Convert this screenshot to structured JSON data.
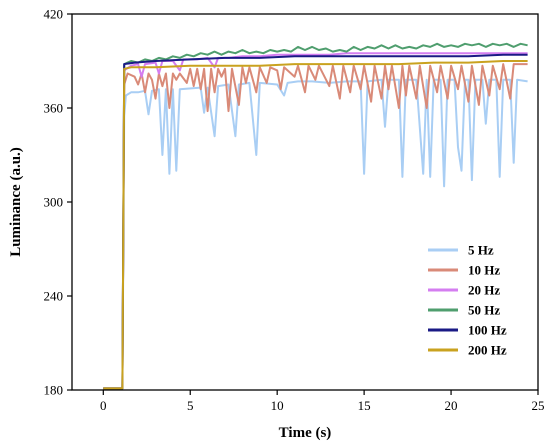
{
  "chart_data": {
    "type": "line",
    "title": "",
    "xlabel": "Time (s)",
    "ylabel": "Luminance (a.u.)",
    "xlim": [
      -1.8,
      25
    ],
    "ylim": [
      180,
      420
    ],
    "x_ticks": [
      0,
      5,
      10,
      15,
      20,
      25
    ],
    "y_ticks": [
      180,
      240,
      300,
      360,
      420
    ],
    "x_tick_labels": [
      "0",
      "5",
      "10",
      "15",
      "20",
      "25"
    ],
    "y_tick_labels": [
      "180",
      "240",
      "300",
      "360",
      "420"
    ],
    "grid": false,
    "legend_position": "bottom-right",
    "series": [
      {
        "name": "5 Hz",
        "color": "#a9cef4",
        "points": [
          [
            0,
            181
          ],
          [
            1.1,
            181
          ],
          [
            1.2,
            355
          ],
          [
            1.3,
            368
          ],
          [
            1.6,
            370
          ],
          [
            2,
            370
          ],
          [
            2.4,
            371
          ],
          [
            2.6,
            356
          ],
          [
            2.8,
            371
          ],
          [
            3.2,
            372
          ],
          [
            3.4,
            330
          ],
          [
            3.6,
            372
          ],
          [
            3.8,
            318
          ],
          [
            4,
            372
          ],
          [
            4.2,
            320
          ],
          [
            4.4,
            372
          ],
          [
            5.6,
            373
          ],
          [
            5.8,
            357
          ],
          [
            6,
            373
          ],
          [
            6.4,
            342
          ],
          [
            6.6,
            374
          ],
          [
            7.2,
            375
          ],
          [
            7.6,
            342
          ],
          [
            7.8,
            375
          ],
          [
            8.4,
            376
          ],
          [
            8.8,
            330
          ],
          [
            9,
            376
          ],
          [
            10,
            375
          ],
          [
            10.4,
            368
          ],
          [
            10.6,
            376
          ],
          [
            11.2,
            377
          ],
          [
            12,
            377
          ],
          [
            13,
            376
          ],
          [
            14,
            377
          ],
          [
            14.8,
            377
          ],
          [
            15,
            318
          ],
          [
            15.2,
            377
          ],
          [
            16,
            378
          ],
          [
            16.2,
            348
          ],
          [
            16.4,
            378
          ],
          [
            17,
            378
          ],
          [
            17.2,
            316
          ],
          [
            17.4,
            378
          ],
          [
            18,
            378
          ],
          [
            18.4,
            318
          ],
          [
            18.6,
            378
          ],
          [
            18.8,
            316
          ],
          [
            19,
            378
          ],
          [
            19.4,
            378
          ],
          [
            19.6,
            310
          ],
          [
            19.8,
            378
          ],
          [
            20.2,
            378
          ],
          [
            20.4,
            335
          ],
          [
            20.6,
            320
          ],
          [
            20.8,
            378
          ],
          [
            21,
            378
          ],
          [
            21.2,
            314
          ],
          [
            21.4,
            378
          ],
          [
            21.8,
            378
          ],
          [
            22,
            350
          ],
          [
            22.2,
            378
          ],
          [
            22.6,
            378
          ],
          [
            22.8,
            316
          ],
          [
            23,
            378
          ],
          [
            23.4,
            378
          ],
          [
            23.6,
            325
          ],
          [
            23.8,
            378
          ],
          [
            24.4,
            377
          ]
        ]
      },
      {
        "name": "10 Hz",
        "color": "#d98a78",
        "points": [
          [
            0,
            181
          ],
          [
            1.1,
            181
          ],
          [
            1.2,
            375
          ],
          [
            1.4,
            382
          ],
          [
            1.8,
            380
          ],
          [
            2,
            375
          ],
          [
            2.2,
            382
          ],
          [
            2.4,
            370
          ],
          [
            2.6,
            382
          ],
          [
            2.8,
            378
          ],
          [
            3,
            366
          ],
          [
            3.2,
            382
          ],
          [
            3.4,
            374
          ],
          [
            3.6,
            382
          ],
          [
            3.8,
            360
          ],
          [
            4,
            382
          ],
          [
            4.2,
            378
          ],
          [
            4.4,
            382
          ],
          [
            4.8,
            376
          ],
          [
            5,
            385
          ],
          [
            5.2,
            374
          ],
          [
            5.4,
            385
          ],
          [
            5.6,
            372
          ],
          [
            5.8,
            385
          ],
          [
            6,
            358
          ],
          [
            6.2,
            385
          ],
          [
            6.4,
            370
          ],
          [
            6.6,
            385
          ],
          [
            6.8,
            380
          ],
          [
            7,
            385
          ],
          [
            7.2,
            358
          ],
          [
            7.4,
            385
          ],
          [
            7.8,
            362
          ],
          [
            8,
            386
          ],
          [
            8.2,
            376
          ],
          [
            8.4,
            386
          ],
          [
            8.8,
            370
          ],
          [
            9,
            386
          ],
          [
            9.4,
            376
          ],
          [
            9.6,
            386
          ],
          [
            10,
            384
          ],
          [
            10.2,
            372
          ],
          [
            10.4,
            386
          ],
          [
            11,
            380
          ],
          [
            11.2,
            387
          ],
          [
            11.6,
            370
          ],
          [
            11.8,
            387
          ],
          [
            12.2,
            378
          ],
          [
            12.4,
            387
          ],
          [
            13,
            374
          ],
          [
            13.2,
            387
          ],
          [
            13.6,
            366
          ],
          [
            13.8,
            387
          ],
          [
            14.2,
            370
          ],
          [
            14.4,
            387
          ],
          [
            14.8,
            372
          ],
          [
            15,
            387
          ],
          [
            15.4,
            364
          ],
          [
            15.6,
            387
          ],
          [
            16,
            366
          ],
          [
            16.2,
            387
          ],
          [
            16.4,
            372
          ],
          [
            16.6,
            387
          ],
          [
            17,
            360
          ],
          [
            17.2,
            387
          ],
          [
            17.4,
            368
          ],
          [
            17.6,
            387
          ],
          [
            18,
            366
          ],
          [
            18.2,
            387
          ],
          [
            18.6,
            360
          ],
          [
            18.8,
            387
          ],
          [
            19.2,
            370
          ],
          [
            19.4,
            387
          ],
          [
            19.8,
            366
          ],
          [
            20,
            387
          ],
          [
            20.4,
            372
          ],
          [
            20.6,
            387
          ],
          [
            21,
            364
          ],
          [
            21.2,
            387
          ],
          [
            21.6,
            362
          ],
          [
            21.8,
            387
          ],
          [
            22.2,
            368
          ],
          [
            22.4,
            387
          ],
          [
            22.8,
            372
          ],
          [
            23,
            388
          ],
          [
            23.4,
            366
          ],
          [
            23.6,
            388
          ],
          [
            24,
            388
          ],
          [
            24.4,
            388
          ]
        ]
      },
      {
        "name": "20 Hz",
        "color": "#d47ef0",
        "points": [
          [
            0,
            181
          ],
          [
            1.1,
            181
          ],
          [
            1.2,
            384
          ],
          [
            1.6,
            387
          ],
          [
            2,
            388
          ],
          [
            2.2,
            380
          ],
          [
            2.4,
            388
          ],
          [
            3,
            389
          ],
          [
            3.2,
            382
          ],
          [
            3.4,
            390
          ],
          [
            4,
            390
          ],
          [
            4.4,
            384
          ],
          [
            4.6,
            391
          ],
          [
            5.4,
            391
          ],
          [
            6,
            392
          ],
          [
            6.4,
            386
          ],
          [
            6.6,
            392
          ],
          [
            7.2,
            392
          ],
          [
            8,
            393
          ],
          [
            8.6,
            393
          ],
          [
            9,
            393
          ],
          [
            10,
            394
          ],
          [
            11,
            394
          ],
          [
            12,
            394
          ],
          [
            13,
            394
          ],
          [
            14,
            395
          ],
          [
            15,
            395
          ],
          [
            16,
            395
          ],
          [
            17,
            395
          ],
          [
            18,
            395
          ],
          [
            19,
            395
          ],
          [
            20,
            395
          ],
          [
            21,
            395
          ],
          [
            22,
            395
          ],
          [
            23,
            395
          ],
          [
            24.4,
            395
          ]
        ]
      },
      {
        "name": "50 Hz",
        "color": "#4f9e6e",
        "points": [
          [
            0,
            181
          ],
          [
            1.1,
            181
          ],
          [
            1.2,
            388
          ],
          [
            1.6,
            390
          ],
          [
            2,
            389
          ],
          [
            2.4,
            391
          ],
          [
            2.8,
            390
          ],
          [
            3.2,
            392
          ],
          [
            3.6,
            391
          ],
          [
            4,
            393
          ],
          [
            4.4,
            392
          ],
          [
            4.8,
            394
          ],
          [
            5.2,
            393
          ],
          [
            5.6,
            395
          ],
          [
            6,
            394
          ],
          [
            6.4,
            396
          ],
          [
            6.8,
            394
          ],
          [
            7.2,
            396
          ],
          [
            7.6,
            395
          ],
          [
            8,
            397
          ],
          [
            8.4,
            395
          ],
          [
            8.8,
            396
          ],
          [
            9.2,
            395
          ],
          [
            9.6,
            397
          ],
          [
            10,
            396
          ],
          [
            10.4,
            397
          ],
          [
            10.8,
            396
          ],
          [
            11.2,
            399
          ],
          [
            11.6,
            397
          ],
          [
            12,
            399
          ],
          [
            12.4,
            397
          ],
          [
            12.8,
            398
          ],
          [
            13.2,
            396
          ],
          [
            13.6,
            397
          ],
          [
            14,
            396
          ],
          [
            14.4,
            399
          ],
          [
            14.8,
            397
          ],
          [
            15.2,
            399
          ],
          [
            15.6,
            398
          ],
          [
            16,
            400
          ],
          [
            16.4,
            398
          ],
          [
            16.8,
            400
          ],
          [
            17.2,
            398
          ],
          [
            17.6,
            399
          ],
          [
            18,
            398
          ],
          [
            18.4,
            400
          ],
          [
            18.8,
            399
          ],
          [
            19.2,
            401
          ],
          [
            19.6,
            399
          ],
          [
            20,
            400
          ],
          [
            20.4,
            399
          ],
          [
            20.8,
            401
          ],
          [
            21.2,
            400
          ],
          [
            21.6,
            401
          ],
          [
            22,
            399
          ],
          [
            22.4,
            401
          ],
          [
            22.8,
            400
          ],
          [
            23.2,
            401
          ],
          [
            23.6,
            399
          ],
          [
            24,
            401
          ],
          [
            24.4,
            400
          ]
        ]
      },
      {
        "name": "100 Hz",
        "color": "#1a1a85",
        "points": [
          [
            0,
            181
          ],
          [
            1.1,
            181
          ],
          [
            1.2,
            388
          ],
          [
            1.8,
            389
          ],
          [
            3,
            390
          ],
          [
            5,
            391
          ],
          [
            7,
            392
          ],
          [
            9,
            392
          ],
          [
            11,
            393
          ],
          [
            13,
            393
          ],
          [
            15,
            393
          ],
          [
            17,
            393
          ],
          [
            19,
            393
          ],
          [
            21,
            393
          ],
          [
            23,
            394
          ],
          [
            24.4,
            394
          ]
        ]
      },
      {
        "name": "200 Hz",
        "color": "#c9a21f",
        "points": [
          [
            0,
            181
          ],
          [
            1.1,
            181
          ],
          [
            1.2,
            385
          ],
          [
            1.6,
            386
          ],
          [
            3,
            386
          ],
          [
            5,
            387
          ],
          [
            7,
            387
          ],
          [
            9,
            387
          ],
          [
            11,
            388
          ],
          [
            13,
            388
          ],
          [
            15,
            388
          ],
          [
            17,
            388
          ],
          [
            19,
            389
          ],
          [
            21,
            389
          ],
          [
            23,
            390
          ],
          [
            24.4,
            390
          ]
        ]
      }
    ]
  }
}
